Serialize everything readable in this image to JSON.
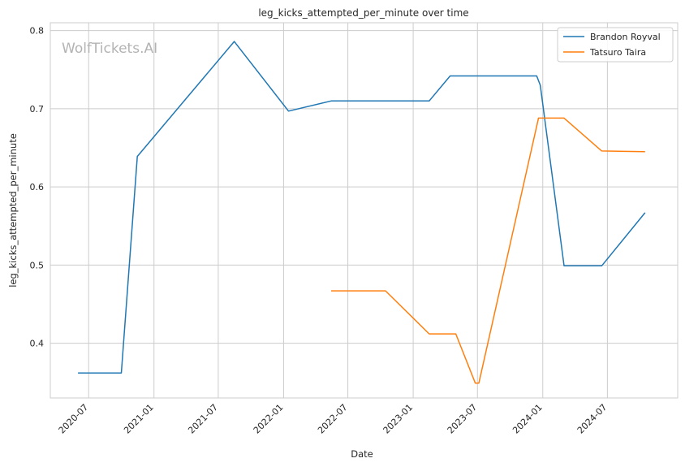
{
  "chart_data": {
    "type": "line",
    "title": "leg_kicks_attempted_per_minute over time",
    "xlabel": "Date",
    "ylabel": "leg_kicks_attempted_per_minute",
    "watermark": "WolfTickets.AI",
    "x_range": [
      "2020-03-15",
      "2025-01-15"
    ],
    "ylim": [
      0.33,
      0.81
    ],
    "x_ticks": [
      "2020-07",
      "2021-01",
      "2021-07",
      "2022-01",
      "2022-07",
      "2023-01",
      "2023-07",
      "2024-01",
      "2024-07"
    ],
    "y_ticks": [
      0.4,
      0.5,
      0.6,
      0.7,
      0.8
    ],
    "grid": true,
    "legend_position": "top-right",
    "series": [
      {
        "name": "Brandon Royval",
        "color": "#1f77b4",
        "x": [
          "2020-06-01",
          "2020-10-01",
          "2020-11-15",
          "2021-08-15",
          "2022-01-15",
          "2022-05-15",
          "2023-02-15",
          "2023-04-15",
          "2023-12-15",
          "2023-12-25",
          "2024-03-01",
          "2024-06-15",
          "2024-10-15"
        ],
        "y": [
          0.362,
          0.362,
          0.639,
          0.786,
          0.697,
          0.71,
          0.71,
          0.742,
          0.742,
          0.73,
          0.499,
          0.499,
          0.567
        ]
      },
      {
        "name": "Tatsuro Taira",
        "color": "#ff7f0e",
        "x": [
          "2022-05-15",
          "2022-10-15",
          "2023-02-15",
          "2023-05-01",
          "2023-06-25",
          "2023-07-05",
          "2023-12-20",
          "2024-03-01",
          "2024-06-15",
          "2024-10-15"
        ],
        "y": [
          0.467,
          0.467,
          0.412,
          0.412,
          0.349,
          0.349,
          0.688,
          0.688,
          0.646,
          0.645
        ]
      }
    ]
  }
}
